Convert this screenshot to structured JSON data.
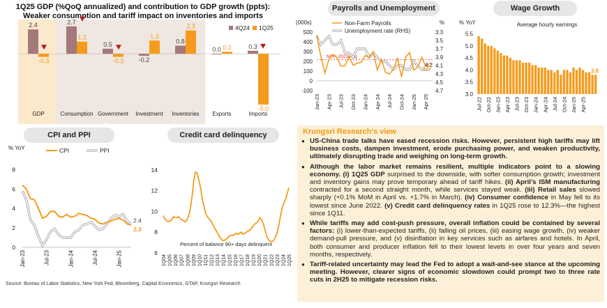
{
  "colors": {
    "q4_24": "#a5787a",
    "q1_25": "#f59b1c",
    "down_marker": "#b41e23",
    "gdp_panel": "#fbe9cc",
    "components_panel": "#efe7e2",
    "view_bg": "#fdf0d8",
    "view_title": "#f39a0f",
    "ppi": "#c9c3cf",
    "line_gray": "#a0a0a0"
  },
  "panels": {
    "gdp_title_1": "1Q25 GDP (%QoQ annualized) and contribution to GDP growth (ppts):",
    "gdp_title_2": "Weaker consumption and tariff impact on inventories and imports",
    "payrolls_title": "Payrolls and Unemployment",
    "wage_title": "Wage Growth",
    "cpi_title": "CPI  and PPI",
    "credit_title": "Credit card delinquency"
  },
  "view": {
    "title": "Krungsri Research’s view",
    "b1_bold": "US-China trade talks have eased recession risks. However, persistent high tariffs may lift business costs, dampen investment, erode purchasing power, and weaken productivity, ultimately disrupting trade and weighing on long-term growth.",
    "b2_bold1": "Although the labor market remains resilient, multiple indicators point to a slowing economy. (i) 1Q25 GDP",
    "b2_t1": " surprised to the downside, with softer consumption growth; investment and inventory gains may prove temporary ahead of tariff hikes. ",
    "b2_bold2": "(ii) April’s ISM manufacturing",
    "b2_t2": " contracted for a second straight month, while services stayed weak. ",
    "b2_bold3": "(iii) Retail sales",
    "b2_t3": " slowed sharply (+0.1% MoM in April vs. +1.7% in March). ",
    "b2_bold4": "(iv) Consumer confidence",
    "b2_t4": " in May fell to its lowest since June 2022. ",
    "b2_bold5": "(v) Credit card delinquency rates",
    "b2_t5": " in 1Q25 rose to 12.3%—the highest since 1Q11.",
    "b3_bold": "While tariffs may add cost-push pressure, overall inflation could be contained by several factors:",
    "b3_t": " (i) lower-than-expected tariffs, (ii) falling oil prices, (iii) easing wage growth, (iv) weaker demand-pull pressure, and (v) disinflation in key services such as airfares and hotels. In April, both consumer and producer inflation fell to their lowest levels in over four years and seven months, respectively.",
    "b4_bold": "Tariff-related uncertainty may lead the Fed to adopt a wait-and-see stance at the upcoming meeting. However, clearer signs of economic slowdown could prompt two to three rate cuts in 2H25 to mitigate recession risks."
  },
  "source": "Source: Bureau of Labor Statistics, New York Fed, Bloomberg, Capital Economics, GTAP, Krungsri Research",
  "chart_data": [
    {
      "id": "gdp",
      "type": "bar",
      "title": "1Q25 GDP (%QoQ annualized) and contribution to GDP growth (ppts): Weaker consumption and tariff impact on inventories and imports",
      "categories": [
        "GDP",
        "Consumption",
        "Government",
        "Investment",
        "Inventories",
        "Exports",
        "Imports"
      ],
      "series": [
        {
          "name": "4Q24",
          "values": [
            2.4,
            2.7,
            0.5,
            -0.2,
            0.8,
            0.0,
            0.3
          ],
          "labels": [
            "2.4",
            "2.7",
            "0.5",
            "-0.2",
            "0.8",
            "0.0",
            "0.3"
          ]
        },
        {
          "name": "1Q25",
          "values": [
            -0.3,
            1.2,
            -0.3,
            1.3,
            2.3,
            0.2,
            -5.0
          ],
          "labels": [
            "-0.3",
            "1.2",
            "-0.3",
            "1.3",
            "2.3",
            "0.2",
            "-5.0"
          ]
        }
      ],
      "down_markers": [
        "GDP",
        "Consumption",
        "Government",
        "Imports"
      ],
      "ylim": [
        -5.4,
        3.1
      ],
      "legend": "top-right"
    },
    {
      "id": "payrolls",
      "type": "bar+line",
      "title": "Payrolls and Unemployment",
      "left_axis_unit": "(000s)",
      "right_axis_unit": "%",
      "left_ticks": [
        "500",
        "400",
        "300",
        "200",
        "100",
        "0",
        "-100"
      ],
      "right_ticks": [
        "3.3",
        "3.5",
        "3.7",
        "3.9",
        "4.1",
        "4.3",
        "4.5",
        "4.7"
      ],
      "x_ticks": [
        "Jan-23",
        "Apr-23",
        "Jul-23",
        "Oct-23",
        "Jan-24",
        "Apr-24",
        "Jul-24",
        "Oct-24",
        "Jan-25",
        "Apr-25"
      ],
      "series": [
        {
          "name": "Non-Farm Payrolls",
          "axis": "left",
          "values": [
            470,
            250,
            80,
            220,
            270,
            240,
            150,
            155,
            250,
            160,
            180,
            190,
            260,
            240,
            300,
            110,
            220,
            90,
            70,
            120,
            230,
            40,
            240,
            290,
            110,
            140,
            240,
            150,
            177
          ]
        },
        {
          "name": "Unemployment rate (RHS)",
          "axis": "right",
          "values": [
            3.4,
            3.6,
            3.5,
            3.4,
            3.6,
            3.6,
            3.5,
            3.8,
            3.8,
            3.9,
            3.7,
            3.7,
            3.7,
            3.9,
            3.8,
            3.9,
            4.0,
            4.0,
            4.1,
            4.2,
            4.1,
            4.1,
            4.2,
            4.2,
            4.0,
            4.1,
            4.2,
            4.2,
            4.2
          ]
        }
      ],
      "annotations": [
        "NFP: 2023 Avg",
        "4.2",
        "177"
      ],
      "nfp_2023_avg": 216,
      "ylim_left": [
        -100,
        500
      ],
      "ylim_right": [
        3.3,
        4.7
      ]
    },
    {
      "id": "wage",
      "type": "bar",
      "title": "Wage Growth",
      "ylabel": "% YoY",
      "subtitle": "Average hourly earnings",
      "y_ticks": [
        "5.5",
        "5.0",
        "4.5",
        "4.0",
        "3.5",
        "3.0"
      ],
      "x_ticks": [
        "Jul-22",
        "Oct-22",
        "Jan-23",
        "Apr-23",
        "Jul-23",
        "Oct-23",
        "Jan-24",
        "Apr-24",
        "Jul-24",
        "Oct-24",
        "Jan-25",
        "Apr-25"
      ],
      "values": [
        5.4,
        5.3,
        5.1,
        5.0,
        5.0,
        4.9,
        4.8,
        4.7,
        4.6,
        4.6,
        4.5,
        4.4,
        4.4,
        4.4,
        4.3,
        4.3,
        4.3,
        4.2,
        4.2,
        4.1,
        4.1,
        4.1,
        4.0,
        4.0,
        3.9,
        4.0,
        3.8,
        4.0,
        4.0,
        3.9,
        4.1,
        4.0,
        4.1,
        4.0,
        3.9,
        3.9,
        3.8,
        3.8
      ],
      "last_label": "3.8",
      "ylim": [
        3.0,
        5.6
      ]
    },
    {
      "id": "cpi_ppi",
      "type": "line",
      "title": "CPI  and PPI",
      "ylabel": "% YoY",
      "y_ticks": [
        "8",
        "6",
        "4",
        "2",
        "0"
      ],
      "x_ticks": [
        "Jan-23",
        "Jul-23",
        "Jan-24",
        "Jul-24",
        "Jan-25"
      ],
      "series": [
        {
          "name": "CPI",
          "values": [
            6.4,
            6.0,
            5.0,
            4.9,
            4.0,
            3.0,
            3.2,
            3.7,
            3.7,
            3.2,
            3.1,
            3.4,
            3.1,
            3.2,
            3.5,
            3.4,
            3.3,
            3.0,
            2.9,
            2.5,
            2.4,
            2.6,
            2.7,
            2.9,
            3.0,
            2.8,
            2.4,
            2.3
          ]
        },
        {
          "name": "PPI",
          "values": [
            5.8,
            4.9,
            2.8,
            2.3,
            1.1,
            0.2,
            0.8,
            1.6,
            1.9,
            1.3,
            1.0,
            1.0,
            1.0,
            1.6,
            1.8,
            2.3,
            2.4,
            2.6,
            2.2,
            1.8,
            1.9,
            2.4,
            3.0,
            3.3,
            3.2,
            3.4,
            2.7,
            2.4
          ]
        }
      ],
      "end_labels": [
        "2.4",
        "2.3"
      ],
      "ylim": [
        0,
        8.6
      ],
      "legend": "top-center"
    },
    {
      "id": "credit",
      "type": "line",
      "title": "Credit card delinquency",
      "subtitle": "Percent of balance 90+ days delinquent",
      "y_ticks": [
        "14",
        "12",
        "10",
        "8",
        "6"
      ],
      "x_ticks": [
        "1Q04",
        "1Q05",
        "1Q06",
        "1Q07",
        "1Q08",
        "1Q09",
        "1Q10",
        "1Q11",
        "1Q12",
        "1Q13",
        "1Q14",
        "1Q15",
        "1Q16",
        "1Q17",
        "1Q18",
        "1Q19",
        "1Q20",
        "1Q21",
        "1Q22",
        "1Q23",
        "1Q24",
        "1Q25"
      ],
      "values": [
        9.6,
        9.3,
        9.1,
        9.0,
        9.1,
        9.2,
        9.5,
        9.4,
        9.4,
        9.5,
        9.3,
        9.2,
        9.1,
        9.0,
        9.2,
        9.6,
        10.3,
        11.5,
        13.0,
        13.8,
        13.7,
        13.0,
        12.3,
        11.2,
        10.5,
        9.8,
        9.5,
        9.3,
        9.1,
        8.8,
        8.5,
        8.2,
        7.9,
        7.6,
        7.4,
        7.2,
        7.2,
        7.3,
        7.5,
        7.6,
        7.7,
        7.7,
        7.8,
        7.9,
        7.8,
        7.9,
        8.0,
        7.8,
        7.9,
        8.0,
        8.1,
        8.2,
        8.4,
        8.6,
        8.8,
        8.9,
        9.1,
        9.4,
        9.2,
        8.8,
        8.2,
        7.6,
        7.3,
        7.1,
        7.1,
        7.2,
        7.5,
        7.9,
        8.6,
        9.5,
        10.3,
        10.8,
        11.1,
        11.7,
        12.3
      ],
      "ylim": [
        6,
        14.6
      ]
    }
  ]
}
